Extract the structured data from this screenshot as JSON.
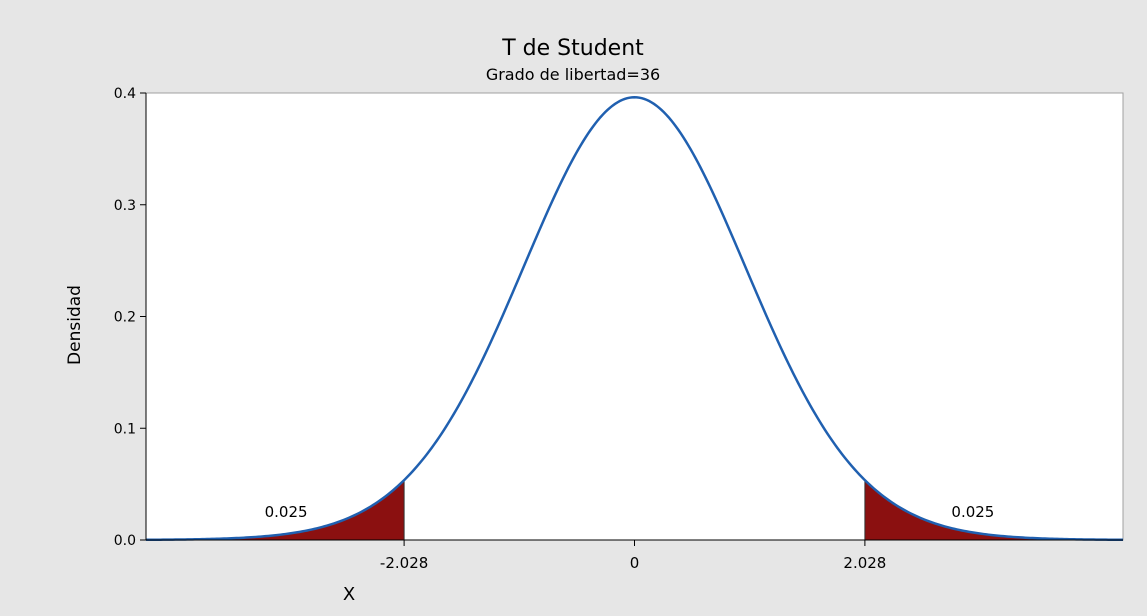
{
  "chart_data": {
    "type": "area",
    "title": "T de Student",
    "subtitle": "Grado de libertad=36",
    "xlabel": "X",
    "ylabel": "Densidad",
    "degrees_of_freedom": 36,
    "xlim": [
      -4.3,
      4.3
    ],
    "ylim": [
      0,
      0.4
    ],
    "y_ticks": [
      {
        "value": 0.0,
        "label": "0.0"
      },
      {
        "value": 0.1,
        "label": "0.1"
      },
      {
        "value": 0.2,
        "label": "0.2"
      },
      {
        "value": 0.3,
        "label": "0.3"
      },
      {
        "value": 0.4,
        "label": "0.4"
      }
    ],
    "x_ticks": [
      {
        "value": -2.028,
        "label": "-2.028"
      },
      {
        "value": 0,
        "label": "0"
      },
      {
        "value": 2.028,
        "label": "2.028"
      }
    ],
    "shaded_regions": [
      {
        "from": -4.3,
        "to": -2.028,
        "area_label": "0.025"
      },
      {
        "from": 2.028,
        "to": 4.3,
        "area_label": "0.025"
      }
    ],
    "grid": false,
    "colors": {
      "curve": "#2060b0",
      "shade": "#8b1010",
      "background": "#e6e6e6",
      "plot_background": "#ffffff"
    }
  }
}
